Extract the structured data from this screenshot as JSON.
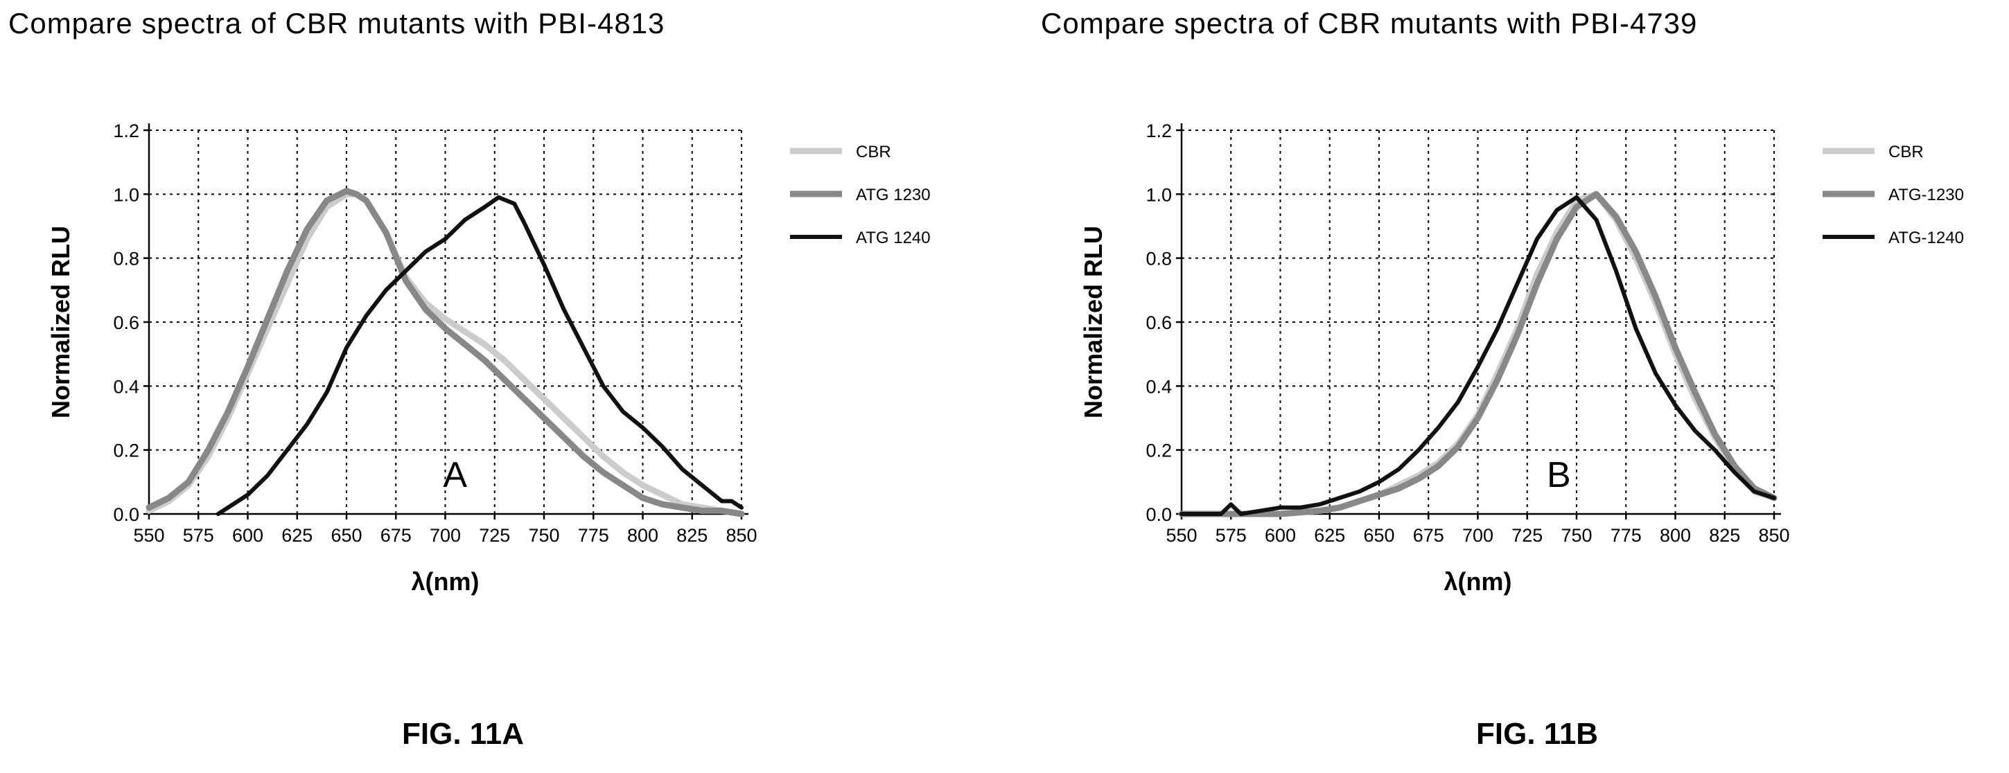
{
  "chart_data": [
    {
      "type": "line",
      "panel": "A",
      "title": "Compare spectra of CBR mutants with PBI-4813",
      "caption": "FIG. 11A",
      "annotation": "A",
      "xlabel": "λ(nm)",
      "ylabel": "Normalized RLU",
      "xlim": [
        550,
        850
      ],
      "ylim": [
        0.0,
        1.2
      ],
      "xticks": [
        550,
        575,
        600,
        625,
        650,
        675,
        700,
        725,
        750,
        775,
        800,
        825,
        850
      ],
      "yticks": [
        "0.0",
        "0.2",
        "0.4",
        "0.6",
        "0.8",
        "1.0",
        "1.2"
      ],
      "grid": true,
      "legend_position": "right",
      "series": [
        {
          "name": "CBR",
          "color": "#cccccc",
          "x": [
            550,
            560,
            570,
            580,
            590,
            600,
            610,
            620,
            630,
            640,
            650,
            655,
            660,
            670,
            680,
            690,
            700,
            710,
            720,
            730,
            740,
            750,
            760,
            770,
            780,
            790,
            800,
            810,
            820,
            830,
            840,
            850
          ],
          "y": [
            0.01,
            0.04,
            0.09,
            0.18,
            0.3,
            0.44,
            0.58,
            0.72,
            0.86,
            0.96,
            1.0,
            1.0,
            0.98,
            0.88,
            0.74,
            0.66,
            0.61,
            0.57,
            0.53,
            0.48,
            0.42,
            0.36,
            0.3,
            0.24,
            0.18,
            0.13,
            0.09,
            0.06,
            0.03,
            0.02,
            0.01,
            0.0
          ]
        },
        {
          "name": "ATG 1230",
          "color": "#888888",
          "x": [
            550,
            560,
            570,
            580,
            590,
            600,
            610,
            620,
            630,
            640,
            650,
            655,
            660,
            670,
            680,
            690,
            700,
            710,
            720,
            730,
            740,
            750,
            760,
            770,
            780,
            790,
            800,
            810,
            820,
            830,
            840,
            850
          ],
          "y": [
            0.02,
            0.05,
            0.1,
            0.2,
            0.32,
            0.46,
            0.61,
            0.76,
            0.89,
            0.98,
            1.01,
            1.0,
            0.98,
            0.88,
            0.73,
            0.64,
            0.58,
            0.53,
            0.48,
            0.42,
            0.36,
            0.3,
            0.24,
            0.18,
            0.13,
            0.09,
            0.05,
            0.03,
            0.02,
            0.01,
            0.01,
            0.0
          ]
        },
        {
          "name": "ATG 1240",
          "color": "#111111",
          "x": [
            585,
            590,
            600,
            610,
            620,
            630,
            640,
            650,
            660,
            670,
            680,
            690,
            700,
            710,
            720,
            727,
            735,
            740,
            750,
            760,
            770,
            780,
            790,
            800,
            810,
            820,
            830,
            840,
            845,
            850
          ],
          "y": [
            0.0,
            0.02,
            0.06,
            0.12,
            0.2,
            0.28,
            0.38,
            0.52,
            0.62,
            0.7,
            0.76,
            0.82,
            0.86,
            0.92,
            0.96,
            0.99,
            0.97,
            0.91,
            0.78,
            0.64,
            0.52,
            0.4,
            0.32,
            0.27,
            0.21,
            0.14,
            0.09,
            0.04,
            0.04,
            0.02
          ]
        }
      ]
    },
    {
      "type": "line",
      "panel": "B",
      "title": "Compare spectra of CBR mutants with PBI-4739",
      "caption": "FIG. 11B",
      "annotation": "B",
      "xlabel": "λ(nm)",
      "ylabel": "Normalized RLU",
      "xlim": [
        550,
        850
      ],
      "ylim": [
        0.0,
        1.2
      ],
      "xticks": [
        550,
        575,
        600,
        625,
        650,
        675,
        700,
        725,
        750,
        775,
        800,
        825,
        850
      ],
      "yticks": [
        "0.0",
        "0.2",
        "0.4",
        "0.6",
        "0.8",
        "1.0",
        "1.2"
      ],
      "grid": true,
      "legend_position": "right",
      "series": [
        {
          "name": "CBR",
          "color": "#cccccc",
          "x": [
            550,
            580,
            600,
            620,
            630,
            640,
            650,
            660,
            670,
            680,
            690,
            700,
            710,
            720,
            730,
            740,
            750,
            760,
            770,
            780,
            790,
            800,
            810,
            820,
            830,
            840,
            850
          ],
          "y": [
            0.0,
            0.0,
            0.0,
            0.01,
            0.02,
            0.04,
            0.06,
            0.09,
            0.12,
            0.16,
            0.22,
            0.31,
            0.44,
            0.58,
            0.75,
            0.88,
            0.98,
            1.0,
            0.92,
            0.8,
            0.66,
            0.5,
            0.36,
            0.24,
            0.14,
            0.07,
            0.05
          ]
        },
        {
          "name": "ATG-1230",
          "color": "#888888",
          "x": [
            550,
            580,
            600,
            620,
            630,
            640,
            650,
            660,
            670,
            680,
            690,
            700,
            710,
            720,
            730,
            740,
            750,
            760,
            770,
            780,
            790,
            800,
            810,
            820,
            830,
            840,
            850
          ],
          "y": [
            0.0,
            0.0,
            0.0,
            0.01,
            0.02,
            0.04,
            0.06,
            0.08,
            0.11,
            0.15,
            0.21,
            0.3,
            0.42,
            0.56,
            0.72,
            0.86,
            0.96,
            1.0,
            0.93,
            0.82,
            0.68,
            0.52,
            0.38,
            0.25,
            0.15,
            0.08,
            0.05
          ]
        },
        {
          "name": "ATG-1240",
          "color": "#111111",
          "x": [
            550,
            570,
            575,
            580,
            590,
            600,
            610,
            620,
            630,
            640,
            650,
            660,
            670,
            680,
            690,
            700,
            710,
            720,
            730,
            740,
            750,
            760,
            770,
            780,
            790,
            800,
            810,
            820,
            830,
            840,
            850
          ],
          "y": [
            0.0,
            0.0,
            0.03,
            0.0,
            0.01,
            0.02,
            0.02,
            0.03,
            0.05,
            0.07,
            0.1,
            0.14,
            0.2,
            0.27,
            0.35,
            0.46,
            0.58,
            0.72,
            0.86,
            0.95,
            0.99,
            0.92,
            0.76,
            0.58,
            0.44,
            0.34,
            0.26,
            0.2,
            0.13,
            0.07,
            0.05
          ]
        }
      ]
    }
  ]
}
